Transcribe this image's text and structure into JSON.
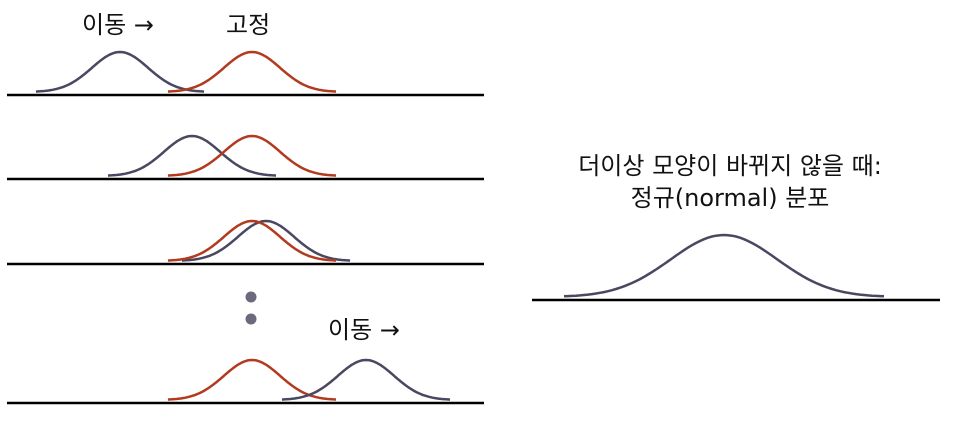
{
  "labels": {
    "moving_top": "이동 →",
    "fixed_top": "고정",
    "moving_bottom": "이동 →"
  },
  "caption": {
    "line1": "더이상 모양이 바뀌지 않을 때:",
    "line2": "정규(normal) 분포"
  },
  "colors": {
    "moving": "#4a4761",
    "fixed": "#b23a1e",
    "axis": "#000000",
    "dot": "#6b6a7d",
    "text": "#111111"
  },
  "rows": [
    {
      "fixed_center": 252,
      "moving_center": 120
    },
    {
      "fixed_center": 252,
      "moving_center": 192
    },
    {
      "fixed_center": 252,
      "moving_center": 266
    },
    {
      "fixed_center": 252,
      "moving_center": 366
    }
  ]
}
